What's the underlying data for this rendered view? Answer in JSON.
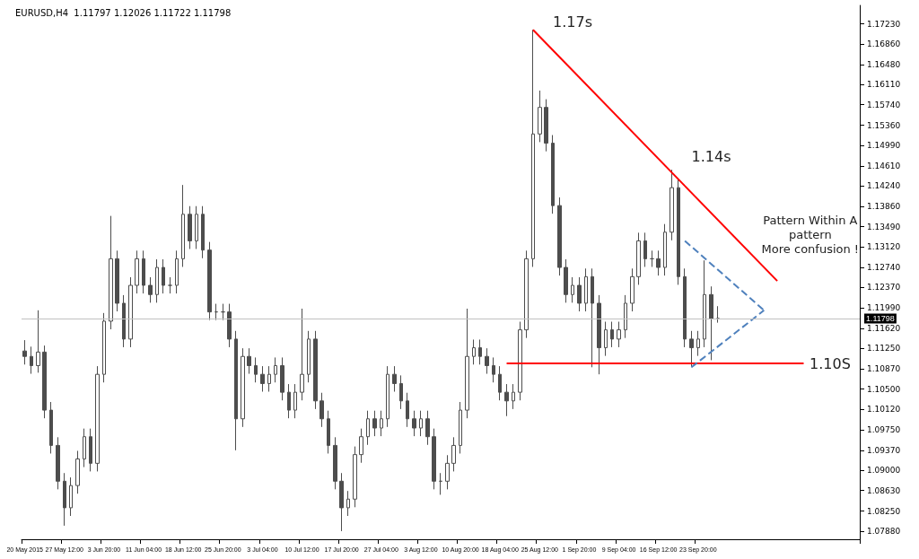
{
  "chart_data": {
    "type": "candlestick",
    "title": "EURUSD,H4  1.11797 1.12026 1.11722 1.11798",
    "color": "#4d4d4d",
    "categories": [
      "20 May 2015",
      null,
      null,
      null,
      null,
      null,
      "27 May 12:00",
      null,
      null,
      null,
      null,
      null,
      "3 Jun 20:00",
      null,
      null,
      null,
      null,
      null,
      "11 Jun 04:00",
      null,
      null,
      null,
      null,
      null,
      "18 Jun 12:00",
      null,
      null,
      null,
      null,
      null,
      "25 Jun 20:00",
      null,
      null,
      null,
      null,
      null,
      "3 Jul 04:00",
      null,
      null,
      null,
      null,
      null,
      "10 Jul 12:00",
      null,
      null,
      null,
      null,
      null,
      "17 Jul 20:00",
      null,
      null,
      null,
      null,
      null,
      "27 Jul 04:00",
      null,
      null,
      null,
      null,
      null,
      "3 Aug 12:00",
      null,
      null,
      null,
      null,
      null,
      "10 Aug 20:00",
      null,
      null,
      null,
      null,
      null,
      "18 Aug 04:00",
      null,
      null,
      null,
      null,
      null,
      "25 Aug 12:00",
      null,
      null,
      null,
      null,
      null,
      "1 Sep 20:00",
      null,
      null,
      null,
      null,
      null,
      "9 Sep 04:00",
      null,
      null,
      null,
      null,
      null,
      "16 Sep 12:00",
      null,
      null,
      null,
      null,
      null,
      "23 Sep 20:00",
      null,
      null,
      null,
      null,
      null,
      null,
      null,
      null,
      null,
      null,
      null,
      null,
      null,
      null,
      null,
      null,
      null,
      null,
      null,
      null,
      null,
      null,
      null,
      null
    ],
    "ohlc": [
      [
        1.112,
        1.114,
        1.1095,
        1.111
      ],
      [
        1.111,
        1.1128,
        1.1078,
        1.1093
      ],
      [
        1.1093,
        1.1195,
        1.108,
        1.1118
      ],
      [
        1.1118,
        1.113,
        1.0996,
        1.1011
      ],
      [
        1.1011,
        1.1026,
        1.0931,
        1.0946
      ],
      [
        1.0946,
        1.0961,
        1.0865,
        1.088
      ],
      [
        1.088,
        1.0895,
        1.0798,
        1.0831
      ],
      [
        1.0831,
        1.0887,
        1.0816,
        1.0872
      ],
      [
        1.0872,
        1.0936,
        1.0857,
        1.0921
      ],
      [
        1.0921,
        1.0977,
        1.0906,
        1.0962
      ],
      [
        1.0962,
        1.0977,
        1.0898,
        1.0913
      ],
      [
        1.0913,
        1.1092,
        1.0898,
        1.1077
      ],
      [
        1.1077,
        1.119,
        1.1062,
        1.1175
      ],
      [
        1.1175,
        1.1369,
        1.116,
        1.129
      ],
      [
        1.129,
        1.1305,
        1.1193,
        1.1208
      ],
      [
        1.1208,
        1.1223,
        1.1127,
        1.1142
      ],
      [
        1.1142,
        1.1256,
        1.1127,
        1.1241
      ],
      [
        1.1241,
        1.1305,
        1.1226,
        1.129
      ],
      [
        1.129,
        1.1305,
        1.1226,
        1.1241
      ],
      [
        1.1241,
        1.1256,
        1.1209,
        1.1224
      ],
      [
        1.1224,
        1.1289,
        1.1209,
        1.1274
      ],
      [
        1.1274,
        1.1289,
        1.1226,
        1.1241
      ],
      [
        1.1241,
        1.1256,
        1.1226,
        1.1241
      ],
      [
        1.1241,
        1.1305,
        1.1226,
        1.129
      ],
      [
        1.129,
        1.1426,
        1.1275,
        1.1372
      ],
      [
        1.1372,
        1.1387,
        1.1308,
        1.1323
      ],
      [
        1.1323,
        1.1387,
        1.1308,
        1.1372
      ],
      [
        1.1372,
        1.1387,
        1.1291,
        1.1306
      ],
      [
        1.1306,
        1.1321,
        1.1177,
        1.1192
      ],
      [
        1.1192,
        1.1207,
        1.1177,
        1.1192
      ],
      [
        1.1192,
        1.1207,
        1.1177,
        1.1192
      ],
      [
        1.1192,
        1.1207,
        1.1127,
        1.1142
      ],
      [
        1.1142,
        1.1157,
        1.0937,
        1.0995
      ],
      [
        1.0995,
        1.1125,
        1.098,
        1.111
      ],
      [
        1.111,
        1.1125,
        1.1078,
        1.1093
      ],
      [
        1.1093,
        1.1108,
        1.1062,
        1.1077
      ],
      [
        1.1077,
        1.1092,
        1.1045,
        1.106
      ],
      [
        1.106,
        1.1092,
        1.1045,
        1.1077
      ],
      [
        1.1077,
        1.1108,
        1.1062,
        1.1093
      ],
      [
        1.1093,
        1.1108,
        1.1029,
        1.1044
      ],
      [
        1.1044,
        1.1059,
        1.0996,
        1.1011
      ],
      [
        1.1011,
        1.1059,
        1.0996,
        1.1044
      ],
      [
        1.1044,
        1.1198,
        1.1029,
        1.1077
      ],
      [
        1.1077,
        1.1157,
        1.1062,
        1.1142
      ],
      [
        1.1142,
        1.1157,
        1.1013,
        1.1028
      ],
      [
        1.1028,
        1.1043,
        1.098,
        1.0995
      ],
      [
        1.0995,
        1.101,
        1.0931,
        1.0946
      ],
      [
        1.0946,
        1.0961,
        1.0865,
        1.088
      ],
      [
        1.088,
        1.0895,
        1.0788,
        1.0831
      ],
      [
        1.0831,
        1.0862,
        1.0816,
        1.0847
      ],
      [
        1.0847,
        1.0944,
        1.0832,
        1.0929
      ],
      [
        1.0929,
        1.0977,
        1.0914,
        1.0962
      ],
      [
        1.0962,
        1.101,
        1.0947,
        1.0995
      ],
      [
        1.0995,
        1.101,
        1.0963,
        1.0978
      ],
      [
        1.0978,
        1.101,
        1.0963,
        1.0995
      ],
      [
        1.0995,
        1.1092,
        1.098,
        1.1077
      ],
      [
        1.1077,
        1.1092,
        1.1045,
        1.106
      ],
      [
        1.106,
        1.1075,
        1.1013,
        1.1028
      ],
      [
        1.1028,
        1.1043,
        1.098,
        1.0995
      ],
      [
        1.0995,
        1.101,
        1.0963,
        1.0978
      ],
      [
        1.0978,
        1.101,
        1.0963,
        1.0995
      ],
      [
        1.0995,
        1.101,
        1.0947,
        1.0962
      ],
      [
        1.0962,
        1.0977,
        1.0865,
        1.088
      ],
      [
        1.088,
        1.0895,
        1.0855,
        1.088
      ],
      [
        1.088,
        1.0928,
        1.0865,
        1.0913
      ],
      [
        1.0913,
        1.0961,
        1.0898,
        1.0946
      ],
      [
        1.0946,
        1.1026,
        1.0931,
        1.1011
      ],
      [
        1.1011,
        1.1198,
        1.0996,
        1.111
      ],
      [
        1.111,
        1.1141,
        1.1095,
        1.1126
      ],
      [
        1.1126,
        1.1141,
        1.1095,
        1.111
      ],
      [
        1.111,
        1.1125,
        1.1078,
        1.1093
      ],
      [
        1.1093,
        1.1108,
        1.1062,
        1.1077
      ],
      [
        1.1077,
        1.1092,
        1.1029,
        1.1044
      ],
      [
        1.1044,
        1.1059,
        1.1,
        1.1028
      ],
      [
        1.1028,
        1.1059,
        1.1013,
        1.1044
      ],
      [
        1.1044,
        1.1174,
        1.1029,
        1.1159
      ],
      [
        1.1159,
        1.1305,
        1.1144,
        1.129
      ],
      [
        1.129,
        1.1712,
        1.1275,
        1.152
      ],
      [
        1.152,
        1.16,
        1.1505,
        1.1569
      ],
      [
        1.1569,
        1.1584,
        1.1488,
        1.1503
      ],
      [
        1.1503,
        1.1518,
        1.1373,
        1.1388
      ],
      [
        1.1388,
        1.1403,
        1.1259,
        1.1274
      ],
      [
        1.1274,
        1.1289,
        1.1209,
        1.1224
      ],
      [
        1.1224,
        1.1256,
        1.1209,
        1.1241
      ],
      [
        1.1241,
        1.1256,
        1.1193,
        1.1208
      ],
      [
        1.1208,
        1.1272,
        1.1193,
        1.1257
      ],
      [
        1.1257,
        1.1272,
        1.109,
        1.1208
      ],
      [
        1.1208,
        1.1223,
        1.1077,
        1.1126
      ],
      [
        1.1126,
        1.1174,
        1.1111,
        1.1159
      ],
      [
        1.1159,
        1.1174,
        1.1127,
        1.1142
      ],
      [
        1.1142,
        1.1174,
        1.1127,
        1.1159
      ],
      [
        1.1159,
        1.1223,
        1.1144,
        1.1208
      ],
      [
        1.1208,
        1.1272,
        1.1193,
        1.1257
      ],
      [
        1.1257,
        1.1338,
        1.1242,
        1.1323
      ],
      [
        1.1323,
        1.1338,
        1.1275,
        1.129
      ],
      [
        1.129,
        1.1305,
        1.1275,
        1.129
      ],
      [
        1.129,
        1.1305,
        1.1259,
        1.1274
      ],
      [
        1.1274,
        1.1354,
        1.1259,
        1.1339
      ],
      [
        1.1339,
        1.1454,
        1.1324,
        1.1421
      ],
      [
        1.1421,
        1.1436,
        1.1242,
        1.1257
      ],
      [
        1.1257,
        1.1272,
        1.1127,
        1.1142
      ],
      [
        1.1142,
        1.1157,
        1.109,
        1.1126
      ],
      [
        1.1126,
        1.1157,
        1.1111,
        1.1142
      ],
      [
        1.1142,
        1.1287,
        1.1127,
        1.1224
      ],
      [
        1.1224,
        1.1239,
        1.1103,
        1.118
      ],
      [
        1.11797,
        1.12026,
        1.11722,
        1.11798
      ],
      null,
      null,
      null,
      null,
      null,
      null,
      null,
      null,
      null,
      null,
      null,
      null,
      null,
      null,
      null,
      null,
      null,
      null,
      null,
      null,
      null
    ],
    "series": [
      {
        "type": "line",
        "color": "#ff0000",
        "values": [
          null,
          null,
          null,
          null,
          null,
          null,
          null,
          null,
          null,
          null,
          null,
          null,
          null,
          null,
          null,
          null,
          null,
          null,
          null,
          null,
          null,
          null,
          null,
          null,
          null,
          null,
          null,
          null,
          null,
          null,
          null,
          null,
          null,
          null,
          null,
          null,
          null,
          null,
          null,
          null,
          null,
          null,
          null,
          null,
          null,
          null,
          null,
          null,
          null,
          null,
          null,
          null,
          null,
          null,
          null,
          null,
          null,
          null,
          null,
          null,
          null,
          null,
          null,
          null,
          null,
          null,
          null,
          null,
          null,
          null,
          null,
          null,
          null,
          null,
          null,
          null,
          null,
          1.1712,
          null,
          null,
          null,
          null,
          null,
          null,
          null,
          null,
          null,
          null,
          null,
          null,
          null,
          null,
          null,
          null,
          null,
          null,
          null,
          null,
          null,
          null,
          null,
          null,
          null,
          null,
          null,
          null,
          null,
          null,
          null,
          null,
          null,
          null,
          null,
          null,
          1.1249,
          null,
          null,
          null,
          null,
          null,
          null,
          null,
          null,
          null,
          null,
          null,
          null
        ]
      },
      {
        "type": "line",
        "color": "#ff0000",
        "values": [
          null,
          null,
          null,
          null,
          null,
          null,
          null,
          null,
          null,
          null,
          null,
          null,
          null,
          null,
          null,
          null,
          null,
          null,
          null,
          null,
          null,
          null,
          null,
          null,
          null,
          null,
          null,
          null,
          null,
          null,
          null,
          null,
          null,
          null,
          null,
          null,
          null,
          null,
          null,
          null,
          null,
          null,
          null,
          null,
          null,
          null,
          null,
          null,
          null,
          null,
          null,
          null,
          null,
          null,
          null,
          null,
          null,
          null,
          null,
          null,
          null,
          null,
          null,
          null,
          null,
          null,
          null,
          null,
          null,
          null,
          null,
          null,
          null,
          1.1097,
          null,
          null,
          null,
          null,
          null,
          null,
          null,
          null,
          null,
          null,
          null,
          null,
          null,
          null,
          null,
          null,
          null,
          null,
          null,
          null,
          null,
          null,
          null,
          null,
          null,
          null,
          null,
          null,
          null,
          null,
          null,
          null,
          null,
          null,
          null,
          null,
          null,
          null,
          null,
          null,
          null,
          null,
          null,
          null,
          1.1097,
          null,
          null,
          null,
          null,
          null,
          null,
          null,
          null
        ]
      },
      {
        "type": "line",
        "color": "#4f81bd",
        "line_style": "dashed",
        "values": [
          null,
          null,
          null,
          null,
          null,
          null,
          null,
          null,
          null,
          null,
          null,
          null,
          null,
          null,
          null,
          null,
          null,
          null,
          null,
          null,
          null,
          null,
          null,
          null,
          null,
          null,
          null,
          null,
          null,
          null,
          null,
          null,
          null,
          null,
          null,
          null,
          null,
          null,
          null,
          null,
          null,
          null,
          null,
          null,
          null,
          null,
          null,
          null,
          null,
          null,
          null,
          null,
          null,
          null,
          null,
          null,
          null,
          null,
          null,
          null,
          null,
          null,
          null,
          null,
          null,
          null,
          null,
          null,
          null,
          null,
          null,
          null,
          null,
          null,
          null,
          null,
          null,
          null,
          null,
          null,
          null,
          null,
          null,
          null,
          null,
          null,
          null,
          null,
          null,
          null,
          null,
          null,
          null,
          null,
          null,
          null,
          null,
          null,
          null,
          null,
          1.1323,
          null,
          null,
          null,
          null,
          null,
          null,
          null,
          null,
          null,
          null,
          null,
          1.1195,
          null,
          null,
          null,
          null,
          null,
          null,
          null,
          null,
          null,
          null,
          null,
          null,
          null,
          null
        ]
      },
      {
        "type": "line",
        "color": "#4f81bd",
        "line_style": "dashed",
        "values": [
          null,
          null,
          null,
          null,
          null,
          null,
          null,
          null,
          null,
          null,
          null,
          null,
          null,
          null,
          null,
          null,
          null,
          null,
          null,
          null,
          null,
          null,
          null,
          null,
          null,
          null,
          null,
          null,
          null,
          null,
          null,
          null,
          null,
          null,
          null,
          null,
          null,
          null,
          null,
          null,
          null,
          null,
          null,
          null,
          null,
          null,
          null,
          null,
          null,
          null,
          null,
          null,
          null,
          null,
          null,
          null,
          null,
          null,
          null,
          null,
          null,
          null,
          null,
          null,
          null,
          null,
          null,
          null,
          null,
          null,
          null,
          null,
          null,
          null,
          null,
          null,
          null,
          null,
          null,
          null,
          null,
          null,
          null,
          null,
          null,
          null,
          null,
          null,
          null,
          null,
          null,
          null,
          null,
          null,
          null,
          null,
          null,
          null,
          null,
          null,
          null,
          1.109,
          null,
          null,
          null,
          null,
          null,
          null,
          null,
          null,
          null,
          null,
          1.1195,
          null,
          null,
          null,
          null,
          null,
          null,
          null,
          null,
          null,
          null,
          null,
          null,
          null,
          null
        ]
      }
    ],
    "ylim": [
      1.0773,
      1.1757
    ],
    "yticks": [
      {
        "value": 1.0788,
        "label": "1.07880"
      },
      {
        "value": 1.0825,
        "label": "1.08250"
      },
      {
        "value": 1.0863,
        "label": "1.08630"
      },
      {
        "value": 1.09,
        "label": "1.09000"
      },
      {
        "value": 1.0937,
        "label": "1.09370"
      },
      {
        "value": 1.0975,
        "label": "1.09750"
      },
      {
        "value": 1.1012,
        "label": "1.10120"
      },
      {
        "value": 1.105,
        "label": "1.10500"
      },
      {
        "value": 1.1087,
        "label": "1.10870"
      },
      {
        "value": 1.1125,
        "label": "1.11250"
      },
      {
        "value": 1.1162,
        "label": "1.11620"
      },
      {
        "value": 1.1199,
        "label": "1.11990"
      },
      {
        "value": 1.1237,
        "label": "1.12370"
      },
      {
        "value": 1.1274,
        "label": "1.12740"
      },
      {
        "value": 1.1312,
        "label": "1.13120"
      },
      {
        "value": 1.1349,
        "label": "1.13490"
      },
      {
        "value": 1.1386,
        "label": "1.13860"
      },
      {
        "value": 1.1424,
        "label": "1.14240"
      },
      {
        "value": 1.1461,
        "label": "1.14610"
      },
      {
        "value": 1.1499,
        "label": "1.14990"
      },
      {
        "value": 1.1536,
        "label": "1.15360"
      },
      {
        "value": 1.1574,
        "label": "1.15740"
      },
      {
        "value": 1.1611,
        "label": "1.16110"
      },
      {
        "value": 1.1648,
        "label": "1.16480"
      },
      {
        "value": 1.1686,
        "label": "1.16860"
      },
      {
        "value": 1.1723,
        "label": "1.17230"
      }
    ],
    "ref_lines": [
      {
        "axis": "y",
        "value": 1.11798,
        "label": "1.11798",
        "color": "#c0c0c0"
      }
    ],
    "annotations": [
      "1.17s",
      "1.14s",
      "1.10S",
      "Pattern Within A\npattern\nMore confusion !"
    ],
    "marker": "none"
  }
}
